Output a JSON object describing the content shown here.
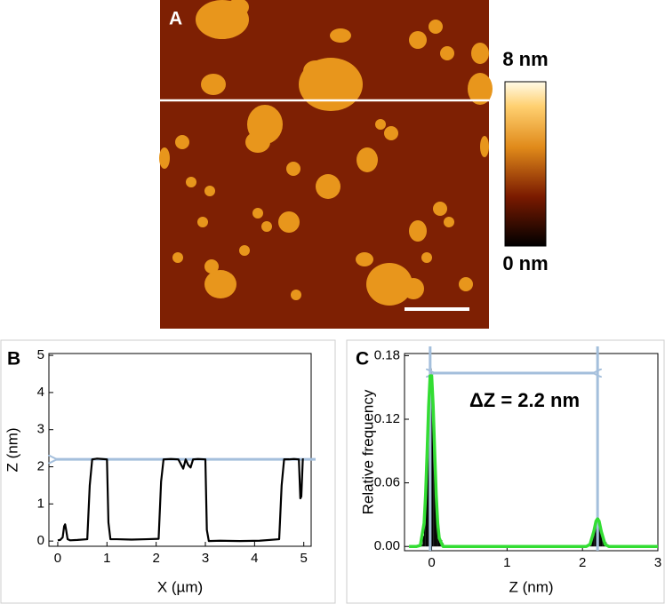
{
  "image_panel": {
    "label": "A",
    "colorbar_max_label": "8 nm",
    "colorbar_min_label": "0 nm"
  },
  "chart_data": [
    {
      "type": "line",
      "panel_label": "B",
      "x_label": "X (µm)",
      "y_label": "Z (nm)",
      "color": "#000000",
      "x": [
        0,
        0.05,
        0.1,
        0.13,
        0.15,
        0.17,
        0.2,
        0.25,
        0.4,
        0.6,
        0.65,
        0.7,
        0.8,
        0.9,
        1.0,
        1.03,
        1.07,
        1.2,
        1.5,
        1.8,
        2.05,
        2.1,
        2.15,
        2.3,
        2.45,
        2.55,
        2.6,
        2.65,
        2.7,
        2.75,
        2.85,
        3.0,
        3.03,
        3.07,
        3.3,
        3.7,
        4.1,
        4.5,
        4.55,
        4.6,
        4.7,
        4.8,
        4.9,
        4.93,
        4.95,
        4.98,
        5.0
      ],
      "values": [
        0.02,
        0.03,
        0.1,
        0.4,
        0.45,
        0.3,
        0.05,
        0.02,
        0.03,
        0.05,
        1.5,
        2.2,
        2.22,
        2.21,
        2.2,
        0.5,
        0.05,
        0.05,
        0.04,
        0.05,
        0.06,
        1.6,
        2.2,
        2.21,
        2.2,
        1.95,
        2.2,
        2.05,
        1.98,
        2.2,
        2.21,
        2.2,
        0.3,
        0,
        0.01,
        0,
        0.01,
        0.05,
        1.5,
        2.2,
        2.2,
        2.21,
        2.2,
        1.15,
        1.2,
        2.2,
        2.2
      ],
      "xlim": [
        -0.18,
        5.15
      ],
      "ylim": [
        -0.14,
        5.05
      ],
      "xticks": [
        0,
        1,
        2,
        3,
        4,
        5
      ],
      "yticks": [
        0,
        1,
        2,
        3,
        4,
        5
      ],
      "hline": 2.2,
      "annotation_color": "#a4bfdc"
    },
    {
      "type": "histogram",
      "panel_label": "C",
      "x_label": "Z (nm)",
      "y_label": "Relative frequency",
      "annotation": "ΔZ = 2.2 nm",
      "series": [
        {
          "color": "#000000",
          "bins": [
            -0.14,
            -0.12,
            -0.1,
            -0.08,
            -0.06,
            -0.04,
            -0.02,
            0,
            0.02,
            0.04,
            0.06,
            0.08,
            0.1,
            0.12,
            0.14,
            0.16
          ],
          "values": [
            0.002,
            0.01,
            0.03,
            0.065,
            0.11,
            0.15,
            0.168,
            0.155,
            0.12,
            0.075,
            0.035,
            0.012,
            0.004,
            0.006,
            0.003
          ]
        },
        {
          "color": "#000000",
          "bins": [
            2.1,
            2.12,
            2.14,
            2.16,
            2.18,
            2.2,
            2.22,
            2.24,
            2.26,
            2.28,
            2.3,
            2.32
          ],
          "values": [
            0.004,
            0.008,
            0.014,
            0.02,
            0.025,
            0.027,
            0.022,
            0.016,
            0.009,
            0.006,
            0.004
          ]
        }
      ],
      "fit": {
        "color": "#33dd33",
        "x": [
          -0.3,
          -0.2,
          -0.15,
          -0.1,
          -0.08,
          -0.06,
          -0.04,
          -0.02,
          0,
          0.02,
          0.04,
          0.06,
          0.08,
          0.1,
          0.15,
          0.2,
          0.4,
          1,
          2,
          2.05,
          2.1,
          2.15,
          2.18,
          2.2,
          2.22,
          2.25,
          2.3,
          2.35,
          2.4,
          2.6,
          3
        ],
        "values": [
          0,
          0,
          0.001,
          0.022,
          0.049,
          0.089,
          0.132,
          0.161,
          0.161,
          0.132,
          0.089,
          0.049,
          0.022,
          0.008,
          0,
          0,
          0,
          0,
          0,
          0,
          0.002,
          0.014,
          0.024,
          0.026,
          0.024,
          0.014,
          0.002,
          0,
          0,
          0,
          0
        ]
      },
      "vlines": [
        -0.02,
        2.2
      ],
      "annotation_color": "#a4bfdc",
      "xlim": [
        -0.36,
        3.0
      ],
      "ylim": [
        -0.004,
        0.182
      ],
      "xticks": [
        0,
        1,
        2,
        3
      ],
      "yticks": [
        {
          "value": 0,
          "label": "0.00"
        },
        {
          "value": 0.06,
          "label": "0.06"
        },
        {
          "value": 0.12,
          "label": "0.12"
        },
        {
          "value": 0.18,
          "label": "0.18"
        }
      ]
    }
  ]
}
